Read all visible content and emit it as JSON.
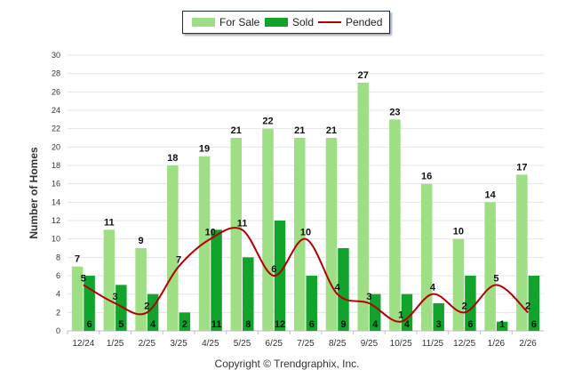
{
  "chart_data": {
    "type": "bar",
    "categories": [
      "12/24",
      "1/25",
      "2/25",
      "3/25",
      "4/25",
      "5/25",
      "6/25",
      "7/25",
      "8/25",
      "9/25",
      "10/25",
      "11/25",
      "12/25",
      "1/26",
      "2/26"
    ],
    "series": [
      {
        "name": "For Sale",
        "type": "bar",
        "color": "#9ede84",
        "values": [
          7,
          11,
          9,
          18,
          19,
          21,
          22,
          21,
          21,
          27,
          23,
          16,
          10,
          14,
          17
        ]
      },
      {
        "name": "Sold",
        "type": "bar",
        "color": "#12a32c",
        "values": [
          6,
          5,
          4,
          2,
          11,
          8,
          12,
          6,
          9,
          4,
          4,
          3,
          6,
          1,
          6
        ]
      },
      {
        "name": "Pended",
        "type": "line",
        "color": "#b30000",
        "values": [
          5,
          3,
          2,
          7,
          10,
          11,
          6,
          10,
          4,
          3,
          1,
          4,
          2,
          5,
          2
        ]
      }
    ],
    "ylabel": "Number of Homes",
    "xlabel": "",
    "ylim": [
      0,
      30
    ],
    "yticks": [
      0,
      2,
      4,
      6,
      8,
      10,
      12,
      14,
      16,
      18,
      20,
      22,
      24,
      26,
      28,
      30
    ],
    "grid": true,
    "legend_position": "top-center"
  },
  "credit": "Copyright © Trendgraphix, Inc."
}
